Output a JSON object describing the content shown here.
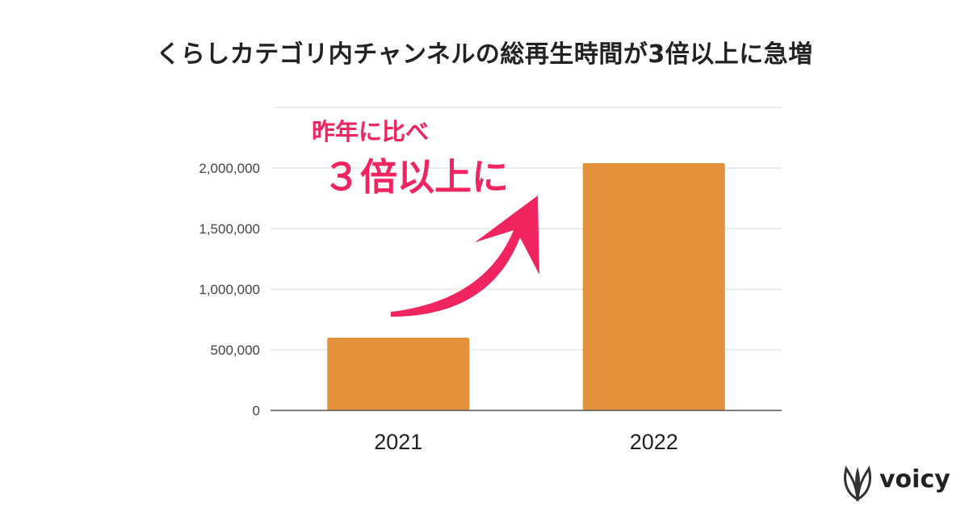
{
  "header": {
    "title": "くらしカテゴリ内チャンネルの総再生時間が3倍以上に急増"
  },
  "callout": {
    "line1": "昨年に比べ",
    "line2": "３倍以上に"
  },
  "brand": {
    "name": "voicy",
    "logo_icon": "voicy-leaf-logo"
  },
  "colors": {
    "bar": "#e3913a",
    "accent": "#f0245e",
    "grid": "#d9d9d9",
    "axis": "#555555"
  },
  "chart_data": {
    "type": "bar",
    "categories": [
      "2021",
      "2022"
    ],
    "values": [
      600000,
      2040000
    ],
    "title": "くらしカテゴリ内チャンネルの総再生時間が3倍以上に急増",
    "xlabel": "",
    "ylabel": "",
    "ylim": [
      0,
      2500000
    ],
    "yticks": [
      0,
      500000,
      1000000,
      1500000,
      2000000
    ],
    "ytick_labels": [
      "0",
      "500,000",
      "1,000,000",
      "1,500,000",
      "2,000,000"
    ],
    "grid": true,
    "legend": "none"
  }
}
